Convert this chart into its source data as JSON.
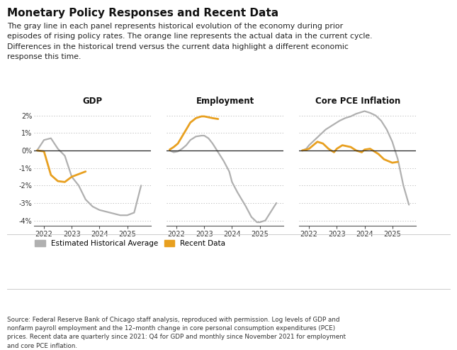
{
  "title": "Monetary Policy Responses and Recent Data",
  "subtitle": "The gray line in each panel represents historical evolution of the economy during prior\nepisodes of rising policy rates. The orange line represents the actual data in the current cycle.\nDifferences in the historical trend versus the current data highlight a different economic\nresponse this time.",
  "source_text": "Source: Federal Reserve Bank of Chicago staff analysis, reproduced with permission. Log levels of GDP and\nnonfarm payroll employment and the 12–month change in core personal consumption expenditures (PCE)\nprices. Recent data are quarterly since 2021: Q4 for GDP and monthly since November 2021 for employment\nand core PCE inflation.",
  "panels": [
    "GDP",
    "Employment",
    "Core PCE Inflation"
  ],
  "ylim": [
    -4.3,
    2.4
  ],
  "yticks": [
    -4,
    -3,
    -2,
    -1,
    0,
    1,
    2
  ],
  "ytick_labels": [
    "-4%",
    "-3%",
    "-2%",
    "-1%",
    "0%",
    "1%",
    "2%"
  ],
  "xlim": [
    2021.65,
    2025.85
  ],
  "xticks": [
    2022,
    2023,
    2024,
    2025
  ],
  "gray_color": "#b0b0b0",
  "orange_color": "#e8a020",
  "background_color": "#ffffff",
  "legend_gray_label": "Estimated Historical Average",
  "legend_orange_label": "Recent Data",
  "gdp_gray_x": [
    2021.75,
    2022.0,
    2022.25,
    2022.5,
    2022.75,
    2023.0,
    2023.25,
    2023.5,
    2023.75,
    2024.0,
    2024.25,
    2024.5,
    2024.75,
    2025.0,
    2025.25,
    2025.5
  ],
  "gdp_gray_y": [
    0.0,
    0.6,
    0.7,
    0.1,
    -0.3,
    -1.5,
    -2.0,
    -2.8,
    -3.2,
    -3.4,
    -3.5,
    -3.6,
    -3.7,
    -3.7,
    -3.55,
    -2.0
  ],
  "gdp_orange_x": [
    2021.75,
    2022.0,
    2022.25,
    2022.5,
    2022.75,
    2023.0,
    2023.25,
    2023.5
  ],
  "gdp_orange_y": [
    0.0,
    -0.05,
    -1.4,
    -1.75,
    -1.8,
    -1.5,
    -1.35,
    -1.2
  ],
  "emp_gray_x": [
    2021.75,
    2021.9,
    2022.05,
    2022.2,
    2022.35,
    2022.5,
    2022.7,
    2022.9,
    2023.0,
    2023.15,
    2023.3,
    2023.5,
    2023.7,
    2023.9,
    2024.0,
    2024.2,
    2024.5,
    2024.7,
    2024.9,
    2025.0,
    2025.2,
    2025.4,
    2025.6
  ],
  "emp_gray_y": [
    0.0,
    -0.1,
    -0.05,
    0.1,
    0.3,
    0.6,
    0.8,
    0.85,
    0.85,
    0.7,
    0.4,
    -0.1,
    -0.6,
    -1.2,
    -1.8,
    -2.4,
    -3.2,
    -3.8,
    -4.1,
    -4.1,
    -4.0,
    -3.5,
    -3.0
  ],
  "emp_orange_x": [
    2021.75,
    2021.9,
    2022.05,
    2022.2,
    2022.35,
    2022.5,
    2022.7,
    2022.9,
    2023.0,
    2023.15,
    2023.3,
    2023.5
  ],
  "emp_orange_y": [
    0.05,
    0.2,
    0.4,
    0.8,
    1.2,
    1.6,
    1.85,
    1.95,
    1.95,
    1.9,
    1.85,
    1.8
  ],
  "pce_gray_x": [
    2021.75,
    2021.9,
    2022.0,
    2022.2,
    2022.4,
    2022.6,
    2022.9,
    2023.1,
    2023.3,
    2023.5,
    2023.7,
    2023.9,
    2024.0,
    2024.2,
    2024.4,
    2024.6,
    2024.8,
    2025.0,
    2025.2,
    2025.4,
    2025.6
  ],
  "pce_gray_y": [
    0.0,
    0.1,
    0.3,
    0.6,
    0.9,
    1.2,
    1.5,
    1.7,
    1.85,
    1.95,
    2.1,
    2.2,
    2.25,
    2.15,
    2.0,
    1.7,
    1.2,
    0.5,
    -0.5,
    -2.0,
    -3.1
  ],
  "pce_orange_x": [
    2021.75,
    2021.9,
    2022.0,
    2022.15,
    2022.3,
    2022.5,
    2022.7,
    2022.9,
    2023.0,
    2023.2,
    2023.5,
    2023.7,
    2023.9,
    2024.0,
    2024.2,
    2024.5,
    2024.7,
    2025.0,
    2025.2
  ],
  "pce_orange_y": [
    0.0,
    0.05,
    0.1,
    0.3,
    0.5,
    0.4,
    0.1,
    -0.1,
    0.1,
    0.3,
    0.2,
    0.0,
    -0.1,
    0.05,
    0.1,
    -0.2,
    -0.5,
    -0.7,
    -0.65
  ]
}
